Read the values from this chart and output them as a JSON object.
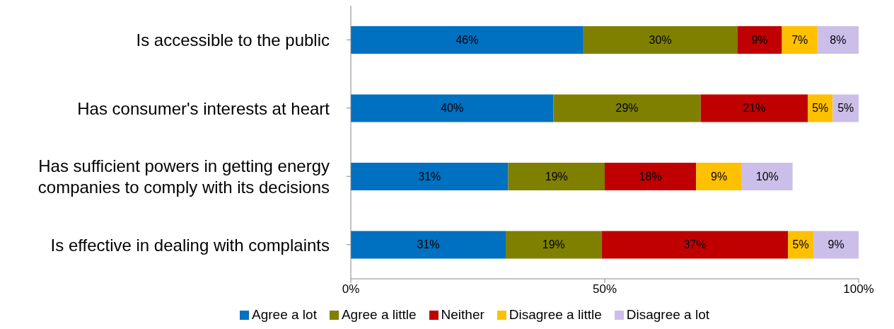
{
  "chart_data": {
    "type": "bar",
    "orientation": "horizontal",
    "stacked": true,
    "categories": [
      "Is accessible to the public",
      "Has consumer's interests at heart",
      "Has sufficient powers in getting energy companies to comply with its decisions",
      "Is effective in dealing with complaints"
    ],
    "series": [
      {
        "name": "Agree a lot",
        "color": "#0070c0",
        "values": [
          45.8,
          39.9,
          31,
          30.5
        ],
        "value_labels": [
          "46%",
          "40%",
          "31%",
          "31%"
        ]
      },
      {
        "name": "Agree a little",
        "color": "#7f8000",
        "values": [
          30.3,
          29,
          19,
          18.9
        ],
        "value_labels": [
          "30%",
          "29%",
          "19%",
          "19%"
        ]
      },
      {
        "name": "Neither",
        "color": "#c00000",
        "values": [
          8.8,
          21.1,
          18,
          36.7
        ],
        "value_labels": [
          "9%",
          "21%",
          "18%",
          "37%"
        ]
      },
      {
        "name": "Disagree a little",
        "color": "#ffc000",
        "values": [
          7,
          4.9,
          9,
          5
        ],
        "value_labels": [
          "7%",
          "5%",
          "9%",
          "5%"
        ]
      },
      {
        "name": "Disagree a lot",
        "color": "#cbbfe9",
        "values": [
          8.1,
          5.1,
          10,
          8.9
        ],
        "value_labels": [
          "8%",
          "5%",
          "10%",
          "9%"
        ]
      }
    ],
    "xlim": [
      0,
      100
    ],
    "xticks": [
      {
        "value": 0,
        "label": "0%"
      },
      {
        "value": 50,
        "label": "50%"
      },
      {
        "value": 100,
        "label": "100%"
      }
    ],
    "grid": false,
    "legend": "bottom"
  }
}
